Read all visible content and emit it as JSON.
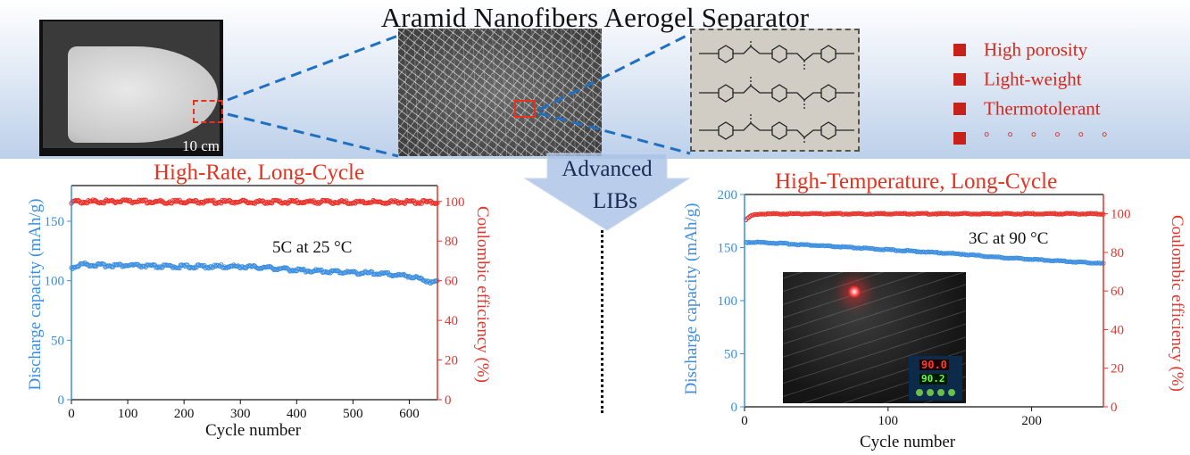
{
  "title": "Aramid Nanofibers Aerogel Separator",
  "photo": {
    "scale_label": "10 cm"
  },
  "features": [
    "High porosity",
    "Light-weight",
    "Thermotolerant",
    "° ° ° ° ° °"
  ],
  "center_arrow": {
    "line1": "Advanced",
    "line2": "LIBs"
  },
  "colors": {
    "capacity": "#3c8ee0",
    "efficiency": "#e8322a",
    "accent_red": "#e8311f"
  },
  "charts": {
    "left": {
      "subtitle": "High-Rate, Long-Cycle",
      "condition": "5C at 25 °C"
    },
    "right": {
      "subtitle": "High-Temperature, Long-Cycle",
      "condition": "3C at 90 °C",
      "inset": {
        "reading_top": "90.0",
        "reading_bottom": "90.2"
      }
    }
  },
  "chart_data": [
    {
      "type": "scatter",
      "xlabel": "Cycle number",
      "ylabel": "Discharge capacity (mAh/g)",
      "y2label": "Coulombic efficiency (%)",
      "xlim": [
        0,
        650
      ],
      "ylim": [
        0,
        180
      ],
      "y2lim": [
        0,
        108
      ],
      "xticks": [
        0,
        100,
        200,
        300,
        400,
        500,
        600
      ],
      "yticks": [
        0,
        50,
        100,
        150
      ],
      "y2ticks": [
        0,
        20,
        40,
        60,
        80,
        100
      ],
      "series": [
        {
          "axis": "left",
          "x": [
            0,
            20,
            50,
            100,
            150,
            200,
            250,
            300,
            350,
            400,
            450,
            500,
            550,
            600,
            625,
            640,
            650
          ],
          "values": [
            111,
            114,
            113,
            113,
            112,
            112,
            112,
            112,
            111,
            109,
            108,
            107,
            106,
            104,
            101,
            99,
            99
          ]
        },
        {
          "axis": "right",
          "x": [
            0,
            20,
            50,
            100,
            200,
            300,
            400,
            500,
            600,
            650
          ],
          "values": [
            99.5,
            100,
            100,
            100,
            99.8,
            99.8,
            99.8,
            99.7,
            99.7,
            99.6
          ]
        }
      ]
    },
    {
      "type": "scatter",
      "xlabel": "Cycle number",
      "ylabel": "Discharge capacity (mAh/g)",
      "y2label": "Coulombic efficiency (%)",
      "xlim": [
        0,
        250
      ],
      "ylim": [
        0,
        200
      ],
      "y2lim": [
        0,
        110
      ],
      "xticks": [
        0,
        100,
        200
      ],
      "yticks": [
        0,
        50,
        100,
        150,
        200
      ],
      "y2ticks": [
        0,
        20,
        40,
        60,
        80,
        100
      ],
      "series": [
        {
          "axis": "left",
          "x": [
            1,
            10,
            25,
            50,
            75,
            100,
            125,
            150,
            175,
            200,
            225,
            250
          ],
          "values": [
            155,
            155,
            154,
            152,
            150,
            148,
            146,
            144,
            141,
            139,
            137,
            135
          ]
        },
        {
          "axis": "right",
          "x": [
            1,
            5,
            10,
            50,
            100,
            150,
            200,
            250
          ],
          "values": [
            97,
            99,
            100,
            100,
            100,
            100,
            100,
            100
          ]
        }
      ]
    }
  ]
}
